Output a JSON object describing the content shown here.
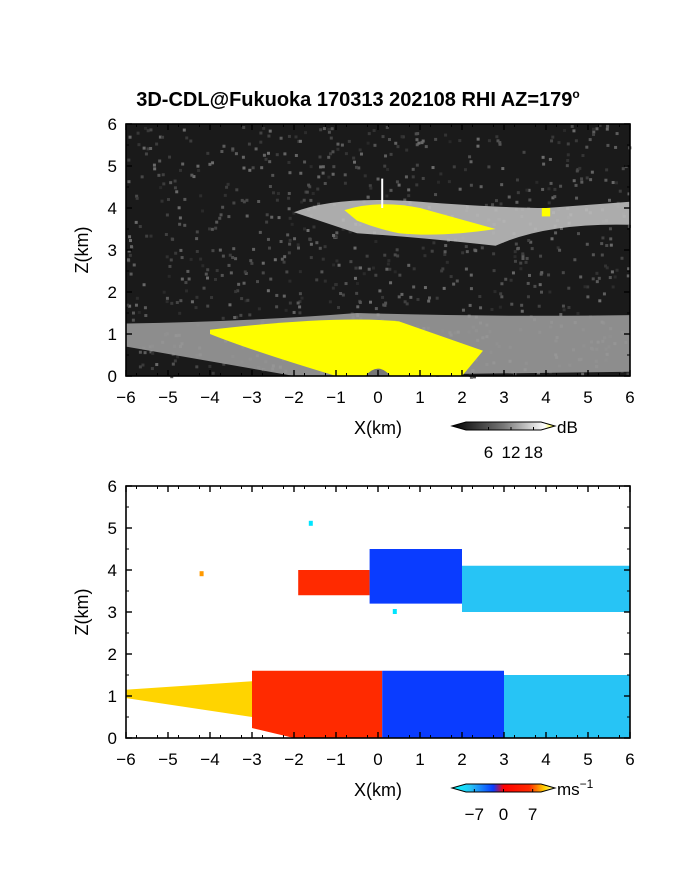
{
  "figure": {
    "title": "3D-CDL@Fukuoka 170313 202108 RHI AZ=179",
    "title_degree": "o"
  },
  "panels": [
    {
      "id": "reflectivity",
      "xlabel": "X(km)",
      "ylabel": "Z(km)",
      "colorbar": {
        "unit": "dB",
        "ticks": [
          "6",
          "12",
          "18"
        ]
      }
    },
    {
      "id": "velocity",
      "xlabel": "X(km)",
      "ylabel": "Z(km)",
      "colorbar": {
        "unit": "ms",
        "unit_exp": "−1",
        "ticks": [
          "−7",
          "0",
          "7"
        ]
      }
    }
  ],
  "colors": {
    "background_noise": "#1a1a1a",
    "signal_high": "#ffff00",
    "velocity_negative": "#0a3cff",
    "velocity_weak_negative": "#27c4f5",
    "velocity_positive": "#ff2a00",
    "velocity_weak_positive": "#ffd400"
  },
  "chart_data": [
    {
      "type": "heatmap",
      "title": "3D-CDL@Fukuoka 170313 202108 RHI AZ=179°",
      "xlabel": "X(km)",
      "ylabel": "Z(km)",
      "xlim": [
        -6,
        6
      ],
      "ylim": [
        0,
        6
      ],
      "x_ticks": [
        "−6",
        "−5",
        "−4",
        "−3",
        "−2",
        "−1",
        "0",
        "1",
        "2",
        "3",
        "4",
        "5",
        "6"
      ],
      "y_ticks": [
        "0",
        "1",
        "2",
        "3",
        "4",
        "5",
        "6"
      ],
      "colorbar": {
        "unit": "dB",
        "ticks": [
          6,
          12,
          18
        ],
        "range": [
          0,
          20
        ]
      },
      "layers": [
        {
          "name": "upper_layer",
          "x_range": [
            -2.0,
            6.0
          ],
          "z_range": [
            3.1,
            4.3
          ],
          "peak_dB": 20,
          "saturated_x_range": [
            -0.8,
            2.8
          ],
          "extra_patch": {
            "x": [
              3.9,
              4.1
            ],
            "z": [
              3.8,
              4.0
            ]
          }
        },
        {
          "name": "lower_layer",
          "x_range": [
            -6.0,
            6.0
          ],
          "z_range": [
            0.0,
            1.5
          ],
          "peak_dB": 20,
          "saturated_x_range": [
            -4.0,
            2.5
          ]
        },
        {
          "name": "spike",
          "x": 0.1,
          "z_range": [
            4.0,
            4.7
          ]
        }
      ]
    },
    {
      "type": "heatmap",
      "xlabel": "X(km)",
      "ylabel": "Z(km)",
      "xlim": [
        -6,
        6
      ],
      "ylim": [
        0,
        6
      ],
      "x_ticks": [
        "−6",
        "−5",
        "−4",
        "−3",
        "−2",
        "−1",
        "0",
        "1",
        "2",
        "3",
        "4",
        "5",
        "6"
      ],
      "y_ticks": [
        "0",
        "1",
        "2",
        "3",
        "4",
        "5",
        "6"
      ],
      "colorbar": {
        "unit": "ms⁻¹",
        "ticks": [
          -7,
          0,
          7
        ],
        "range": [
          -9,
          9
        ]
      },
      "layers": [
        {
          "name": "upper_layer",
          "segments": [
            {
              "x_range": [
                -1.9,
                -0.2
              ],
              "z_range": [
                3.4,
                4.0
              ],
              "velocity": 5
            },
            {
              "x_range": [
                -0.2,
                2.0
              ],
              "z_range": [
                3.2,
                4.5
              ],
              "velocity": -7
            },
            {
              "x_range": [
                2.0,
                6.0
              ],
              "z_range": [
                3.0,
                4.1
              ],
              "velocity": -3
            }
          ]
        },
        {
          "name": "lower_layer",
          "segments": [
            {
              "x_range": [
                -6.0,
                -3.0
              ],
              "z_range": [
                0.0,
                1.2
              ],
              "velocity": 7
            },
            {
              "x_range": [
                -3.0,
                0.1
              ],
              "z_range": [
                0.0,
                1.6
              ],
              "velocity": 4
            },
            {
              "x_range": [
                0.1,
                3.0
              ],
              "z_range": [
                0.0,
                1.6
              ],
              "velocity": -7
            },
            {
              "x_range": [
                3.0,
                6.0
              ],
              "z_range": [
                0.0,
                1.5
              ],
              "velocity": -3
            }
          ]
        },
        {
          "name": "isolated_points",
          "points": [
            [
              -4.2,
              3.9
            ],
            [
              -1.6,
              5.1
            ],
            [
              0.4,
              3.0
            ]
          ]
        }
      ]
    }
  ]
}
